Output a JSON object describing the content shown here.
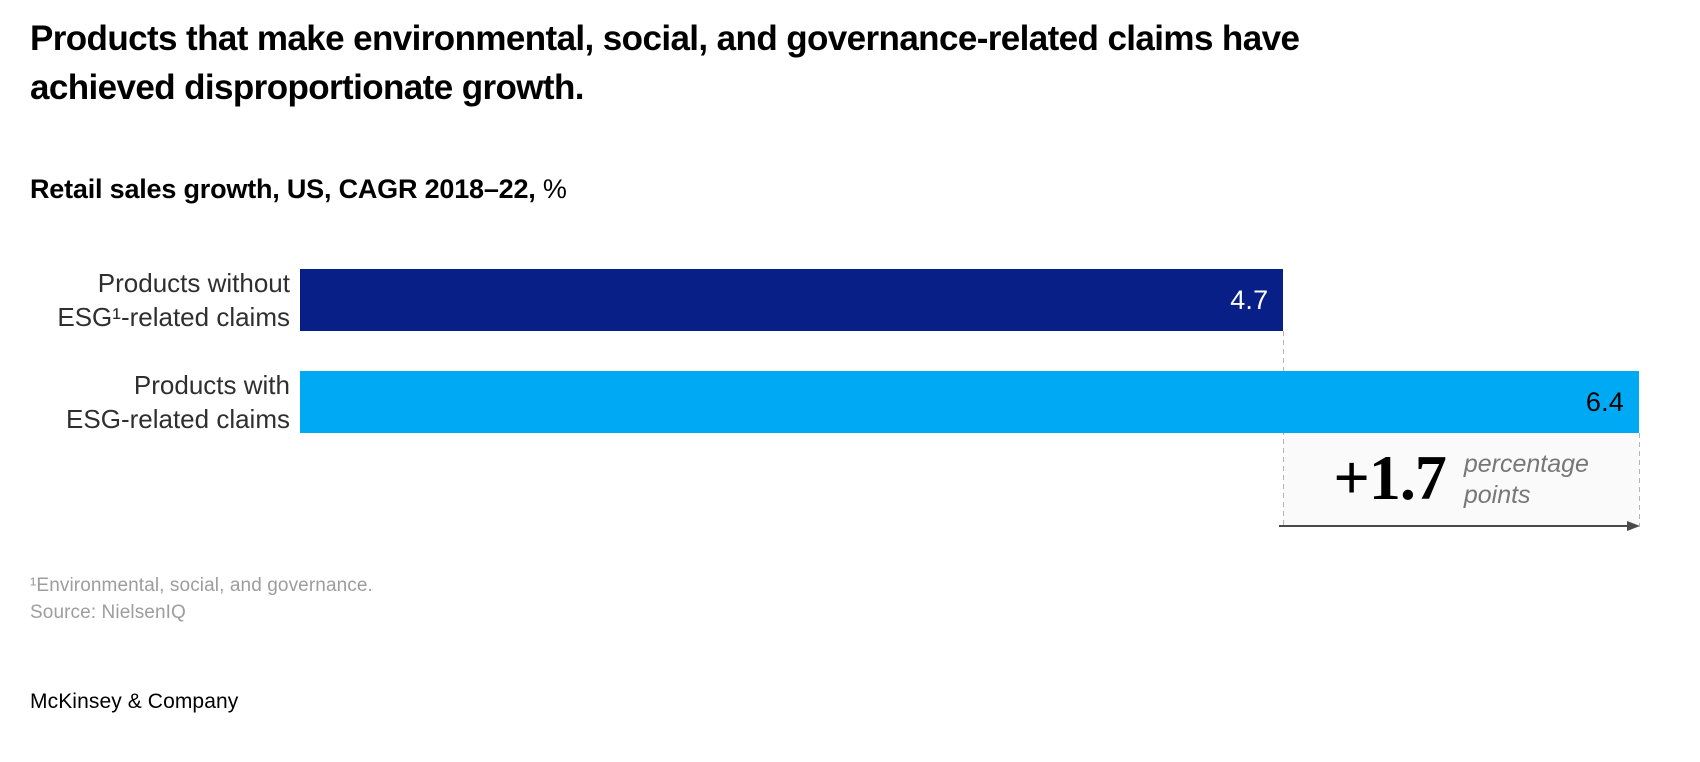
{
  "chart_data": {
    "type": "bar",
    "orientation": "horizontal",
    "title": "Products that make environmental, social, and governance-related claims have achieved disproportionate growth.",
    "subtitle": "Retail sales growth, US, CAGR 2018–22, %",
    "categories": [
      "Products without ESG¹-related claims",
      "Products with ESG-related claims"
    ],
    "values": [
      4.7,
      6.4
    ],
    "value_labels": [
      "4.7",
      "6.4"
    ],
    "xlim": [
      0,
      6.4
    ],
    "unit": "%",
    "grid": false,
    "legend": false,
    "bar_colors": [
      "#081f87",
      "#00a9f4"
    ],
    "value_label_colors": [
      "#ffffff",
      "#000000"
    ],
    "delta_annotation": {
      "value": "+1.7",
      "label": "percentage points"
    }
  },
  "header": {
    "title_line1": "Products that make environmental, social, and governance-related claims have",
    "title_line2": "achieved disproportionate growth.",
    "subtitle_bold": "Retail sales growth, US, CAGR 2018–22,",
    "subtitle_unit": " %"
  },
  "rows": [
    {
      "label_line1": "Products without",
      "label_line2": "ESG¹-related claims",
      "value": "4.7"
    },
    {
      "label_line1": "Products with",
      "label_line2": "ESG-related claims",
      "value": "6.4"
    }
  ],
  "annotation": {
    "delta": "+1.7",
    "unit_line1": "percentage",
    "unit_line2": "points"
  },
  "footnotes": {
    "note1": "¹Environmental, social, and governance.",
    "source": "Source: NielsenIQ"
  },
  "brand": "McKinsey & Company"
}
